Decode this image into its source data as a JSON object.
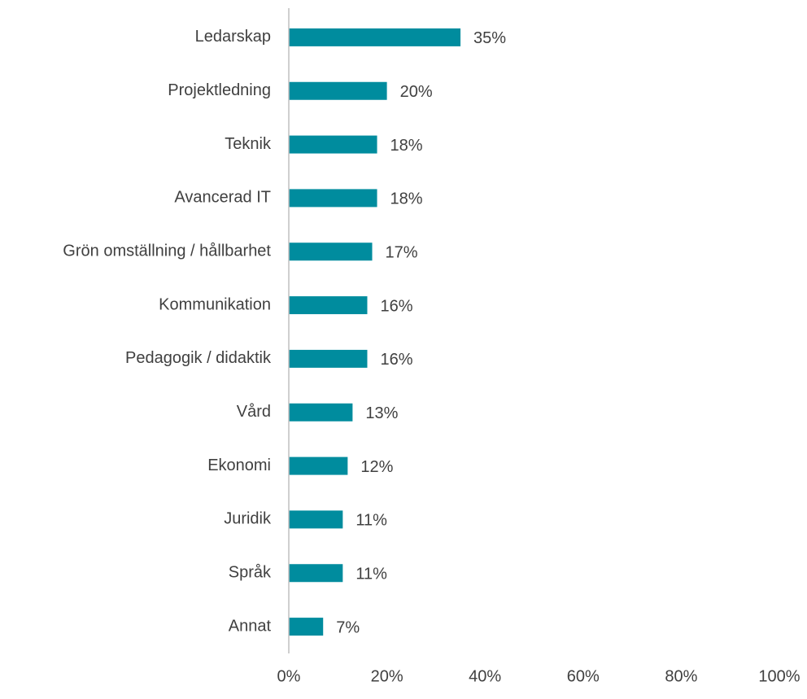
{
  "chart_data": {
    "type": "bar",
    "orientation": "horizontal",
    "categories": [
      "Ledarskap",
      "Projektledning",
      "Teknik",
      "Avancerad IT",
      "Grön omställning / hållbarhet",
      "Kommunikation",
      "Pedagogik / didaktik",
      "Vård",
      "Ekonomi",
      "Juridik",
      "Språk",
      "Annat"
    ],
    "values": [
      35,
      20,
      18,
      18,
      17,
      16,
      16,
      13,
      12,
      11,
      11,
      7
    ],
    "value_labels": [
      "35%",
      "20%",
      "18%",
      "18%",
      "17%",
      "16%",
      "16%",
      "13%",
      "12%",
      "11%",
      "11%",
      "7%"
    ],
    "color": "#008c9e",
    "xlim": [
      0,
      100
    ],
    "xticks": [
      {
        "value": 0,
        "label": "0%"
      },
      {
        "value": 20,
        "label": "20%"
      },
      {
        "value": 40,
        "label": "40%"
      },
      {
        "value": 60,
        "label": "60%"
      },
      {
        "value": 80,
        "label": "80%"
      },
      {
        "value": 100,
        "label": "100%"
      }
    ],
    "grid": false
  }
}
